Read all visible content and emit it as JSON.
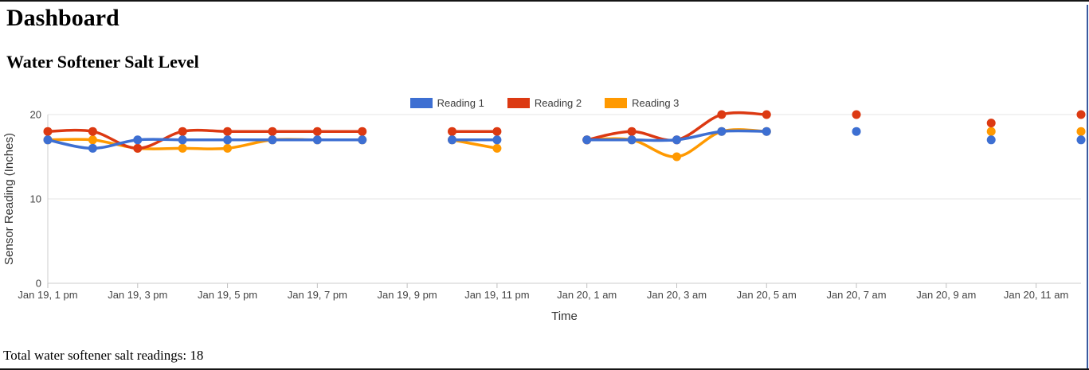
{
  "header": {
    "title": "Dashboard"
  },
  "chart_data": {
    "type": "line",
    "title": "Water Softener Salt Level",
    "xlabel": "Time",
    "ylabel": "Sensor Reading (Inches)",
    "ylim": [
      0,
      20
    ],
    "y_ticks": [
      0,
      10,
      20
    ],
    "x_tick_labels": [
      "Jan 19, 1 pm",
      "Jan 19, 3 pm",
      "Jan 19, 5 pm",
      "Jan 19, 7 pm",
      "Jan 19, 9 pm",
      "Jan 19, 11 pm",
      "Jan 20, 1 am",
      "Jan 20, 3 am",
      "Jan 20, 5 am",
      "Jan 20, 7 am",
      "Jan 20, 9 am",
      "Jan 20, 11 am"
    ],
    "x_tick_hours": [
      0,
      2,
      4,
      6,
      8,
      10,
      12,
      14,
      16,
      18,
      20,
      22
    ],
    "x_span_hours": 23,
    "grid": "horizontal-only",
    "legend_position": "top",
    "curve": "smooth",
    "point_times": [
      "Jan 19, 1 pm",
      "Jan 19, 2 pm",
      "Jan 19, 3 pm",
      "Jan 19, 4 pm",
      "Jan 19, 5 pm",
      "Jan 19, 6 pm",
      "Jan 19, 7 pm",
      "Jan 19, 8 pm",
      "Jan 19, 10 pm",
      "Jan 19, 11 pm",
      "Jan 20, 1 am",
      "Jan 20, 2 am",
      "Jan 20, 3 am",
      "Jan 20, 4 am",
      "Jan 20, 5 am",
      "Jan 20, 7 am",
      "Jan 20, 10 am",
      "Jan 20, 12 pm"
    ],
    "point_hours": [
      0,
      1,
      2,
      3,
      4,
      5,
      6,
      7,
      9,
      10,
      12,
      13,
      14,
      15,
      16,
      18,
      21,
      23
    ],
    "series": [
      {
        "name": "Reading 1",
        "color": "#3D6FD2",
        "values": [
          17,
          16,
          17,
          17,
          17,
          17,
          17,
          17,
          17,
          17,
          17,
          17,
          17,
          18,
          18,
          18,
          17,
          17
        ]
      },
      {
        "name": "Reading 2",
        "color": "#DC3912",
        "values": [
          18,
          18,
          16,
          18,
          18,
          18,
          18,
          18,
          18,
          18,
          17,
          18,
          17,
          20,
          20,
          20,
          19,
          20
        ]
      },
      {
        "name": "Reading 3",
        "color": "#FF9900",
        "values": [
          17,
          17,
          16,
          16,
          16,
          17,
          17,
          17,
          17,
          16,
          17,
          17,
          15,
          18,
          18,
          null,
          18,
          18
        ]
      }
    ]
  },
  "footer": {
    "total_label": "Total water softener salt readings:",
    "total_value": "18"
  }
}
